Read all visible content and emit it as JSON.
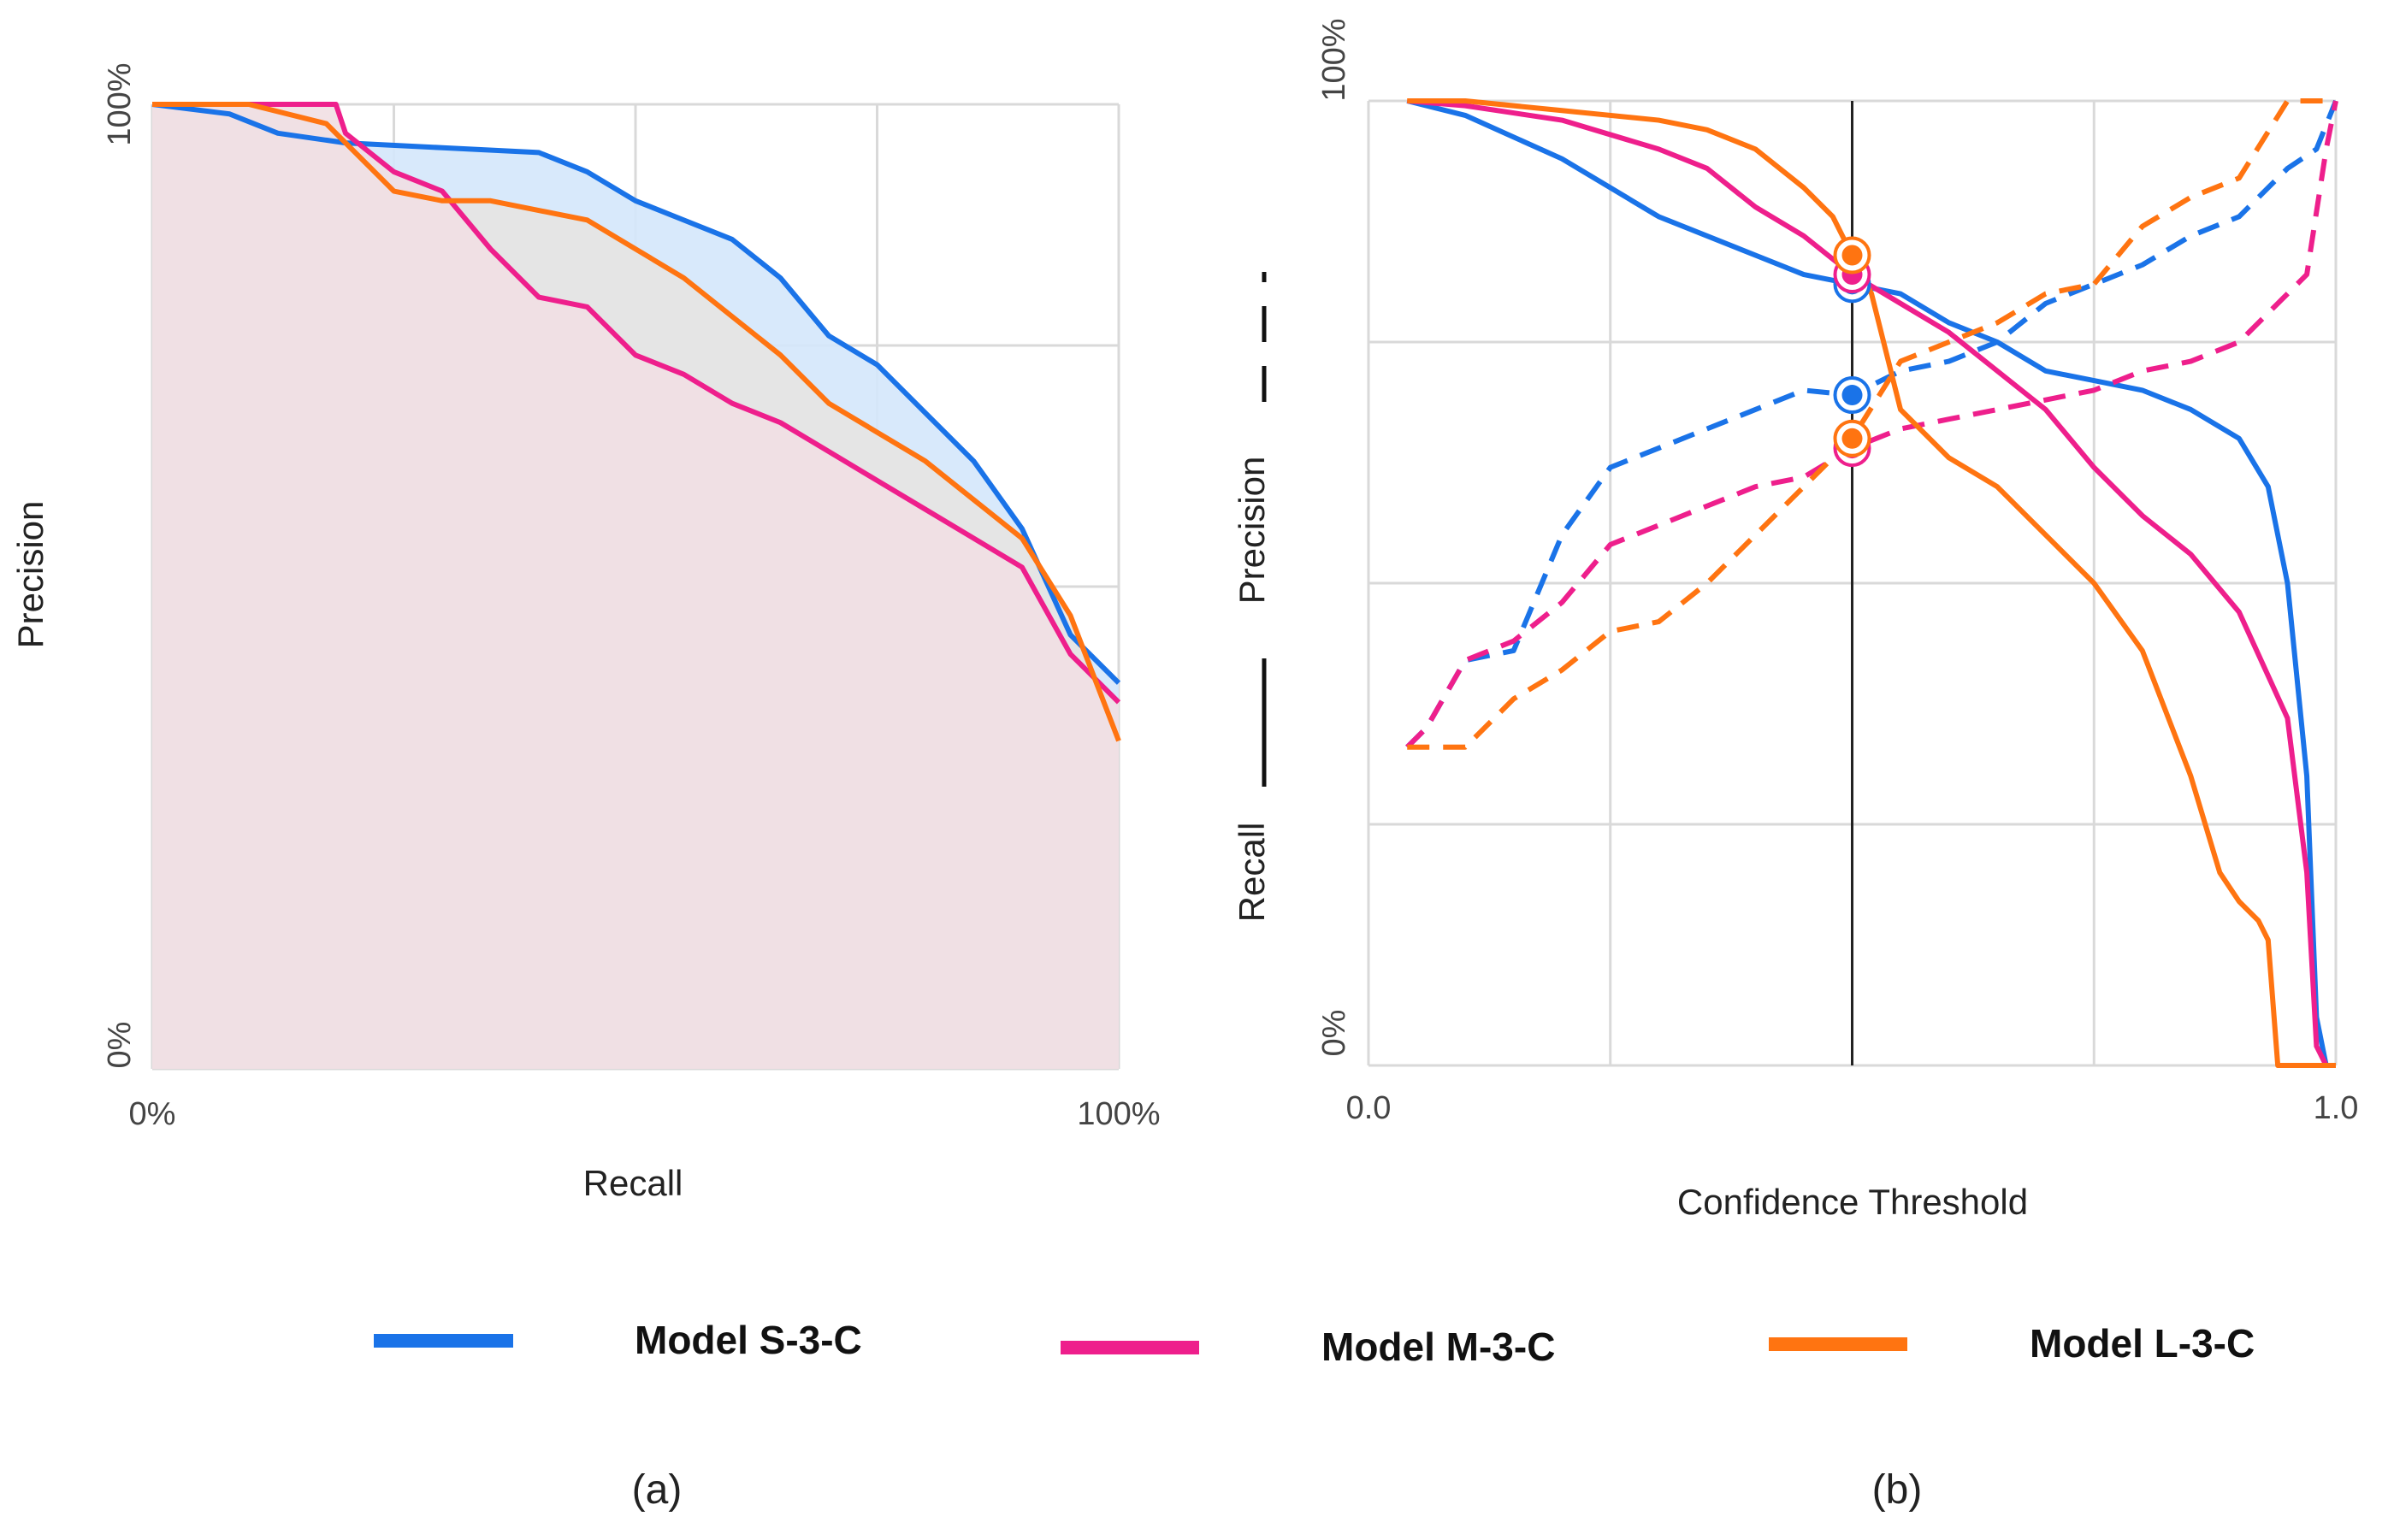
{
  "chart_data": [
    {
      "panel": "(a)",
      "type": "area",
      "title": "",
      "xlabel": "Recall",
      "ylabel": "Precision",
      "xlim": [
        0,
        100
      ],
      "ylim": [
        0,
        100
      ],
      "x_ticks": [
        "0%",
        "100%"
      ],
      "y_ticks": [
        "0%",
        "100%"
      ],
      "grid": true,
      "series": [
        {
          "name": "Model S-3-C",
          "x": [
            0,
            8,
            13,
            20,
            30,
            40,
            45,
            50,
            55,
            60,
            65,
            70,
            75,
            80,
            85,
            90,
            95,
            100
          ],
          "y": [
            100,
            99,
            97,
            96,
            95.5,
            95,
            93,
            90,
            88,
            86,
            82,
            76,
            73,
            68,
            63,
            56,
            45,
            40
          ]
        },
        {
          "name": "Model M-3-C",
          "x": [
            0,
            10,
            19,
            20,
            25,
            30,
            35,
            40,
            45,
            50,
            55,
            60,
            65,
            70,
            75,
            80,
            85,
            90,
            95,
            100
          ],
          "y": [
            100,
            100,
            100,
            97,
            93,
            91,
            85,
            80,
            79,
            74,
            72,
            69,
            67,
            64,
            61,
            58,
            55,
            52,
            43,
            38
          ]
        },
        {
          "name": "Model L-3-C",
          "x": [
            0,
            10,
            18,
            25,
            30,
            35,
            45,
            50,
            55,
            60,
            65,
            70,
            75,
            80,
            85,
            90,
            95,
            100
          ],
          "y": [
            100,
            100,
            98,
            91,
            90,
            90,
            88,
            85,
            82,
            78,
            74,
            69,
            66,
            63,
            59,
            55,
            47,
            34
          ]
        }
      ]
    },
    {
      "panel": "(b)",
      "type": "line",
      "title": "",
      "xlabel": "Confidence Threshold",
      "ylabel": "Recall ——  Precision - - -",
      "ylabel_recall": "Recall",
      "ylabel_precision": "Precision",
      "xlim": [
        0,
        1
      ],
      "ylim": [
        0,
        100
      ],
      "x_ticks": [
        "0.0",
        "1.0"
      ],
      "y_ticks": [
        "0%",
        "100%"
      ],
      "grid": true,
      "threshold_marker": 0.5,
      "series": [
        {
          "name": "Model S-3-C",
          "recall": {
            "x": [
              0.04,
              0.1,
              0.2,
              0.3,
              0.4,
              0.45,
              0.5,
              0.55,
              0.6,
              0.65,
              0.7,
              0.75,
              0.8,
              0.85,
              0.9,
              0.93,
              0.95,
              0.97,
              0.98,
              0.99,
              1.0
            ],
            "y": [
              100,
              98.5,
              94,
              88,
              84,
              82,
              81,
              80,
              77,
              75,
              72,
              71,
              70,
              68,
              65,
              60,
              50,
              30,
              5,
              0,
              0
            ]
          },
          "precision": {
            "x": [
              0.04,
              0.06,
              0.1,
              0.15,
              0.2,
              0.25,
              0.3,
              0.35,
              0.4,
              0.45,
              0.5,
              0.55,
              0.6,
              0.65,
              0.7,
              0.75,
              0.8,
              0.85,
              0.9,
              0.95,
              0.98,
              1.0
            ],
            "y": [
              33,
              35,
              42,
              43,
              55,
              62,
              64,
              66,
              68,
              70,
              69.5,
              72,
              73,
              75,
              79,
              81,
              83,
              86,
              88,
              93,
              95,
              100
            ]
          }
        },
        {
          "name": "Model M-3-C",
          "recall": {
            "x": [
              0.04,
              0.1,
              0.2,
              0.3,
              0.35,
              0.4,
              0.45,
              0.5,
              0.55,
              0.6,
              0.65,
              0.7,
              0.75,
              0.8,
              0.85,
              0.9,
              0.95,
              0.97,
              0.98,
              0.99
            ],
            "y": [
              100,
              99.5,
              98,
              95,
              93,
              89,
              86,
              82,
              79,
              76,
              72,
              68,
              62,
              57,
              53,
              47,
              36,
              20,
              2,
              0
            ]
          },
          "precision": {
            "x": [
              0.04,
              0.06,
              0.1,
              0.15,
              0.2,
              0.25,
              0.3,
              0.35,
              0.4,
              0.45,
              0.5,
              0.55,
              0.6,
              0.65,
              0.7,
              0.75,
              0.8,
              0.85,
              0.9,
              0.94,
              0.97,
              0.99,
              1.0
            ],
            "y": [
              33,
              35,
              42,
              44,
              48,
              54,
              56,
              58,
              60,
              61,
              64,
              66,
              67,
              68,
              69,
              70,
              72,
              73,
              75,
              79,
              82,
              95,
              100
            ]
          }
        },
        {
          "name": "Model L-3-C",
          "recall": {
            "x": [
              0.04,
              0.1,
              0.2,
              0.3,
              0.35,
              0.4,
              0.45,
              0.48,
              0.5,
              0.52,
              0.55,
              0.6,
              0.65,
              0.7,
              0.75,
              0.8,
              0.85,
              0.88,
              0.9,
              0.92,
              0.93,
              0.94,
              0.96,
              1.0
            ],
            "y": [
              100,
              100,
              99,
              98,
              97,
              95,
              91,
              88,
              84,
              80,
              68,
              63,
              60,
              55,
              50,
              43,
              30,
              20,
              17,
              15,
              13,
              0,
              0,
              0
            ]
          },
          "precision": {
            "x": [
              0.04,
              0.1,
              0.15,
              0.2,
              0.25,
              0.3,
              0.35,
              0.4,
              0.45,
              0.5,
              0.55,
              0.6,
              0.65,
              0.7,
              0.75,
              0.8,
              0.85,
              0.9,
              0.95,
              1.0
            ],
            "y": [
              33,
              33,
              38,
              41,
              45,
              46,
              50,
              55,
              60,
              65,
              73,
              75,
              77,
              80,
              81,
              87,
              90,
              92,
              100,
              100
            ]
          }
        }
      ]
    }
  ],
  "legend": {
    "items": [
      {
        "name": "Model S-3-C",
        "color": "#1a73e8"
      },
      {
        "name": "Model M-3-C",
        "color": "#ee1f8c"
      },
      {
        "name": "Model L-3-C",
        "color": "#ff7411"
      }
    ]
  },
  "colors": {
    "grid": "#d9d9d9",
    "fill_s": "#d4e7fb",
    "fill_l": "#e7e4e2",
    "fill_m": "#f1dfe3",
    "marker": "#222222"
  }
}
